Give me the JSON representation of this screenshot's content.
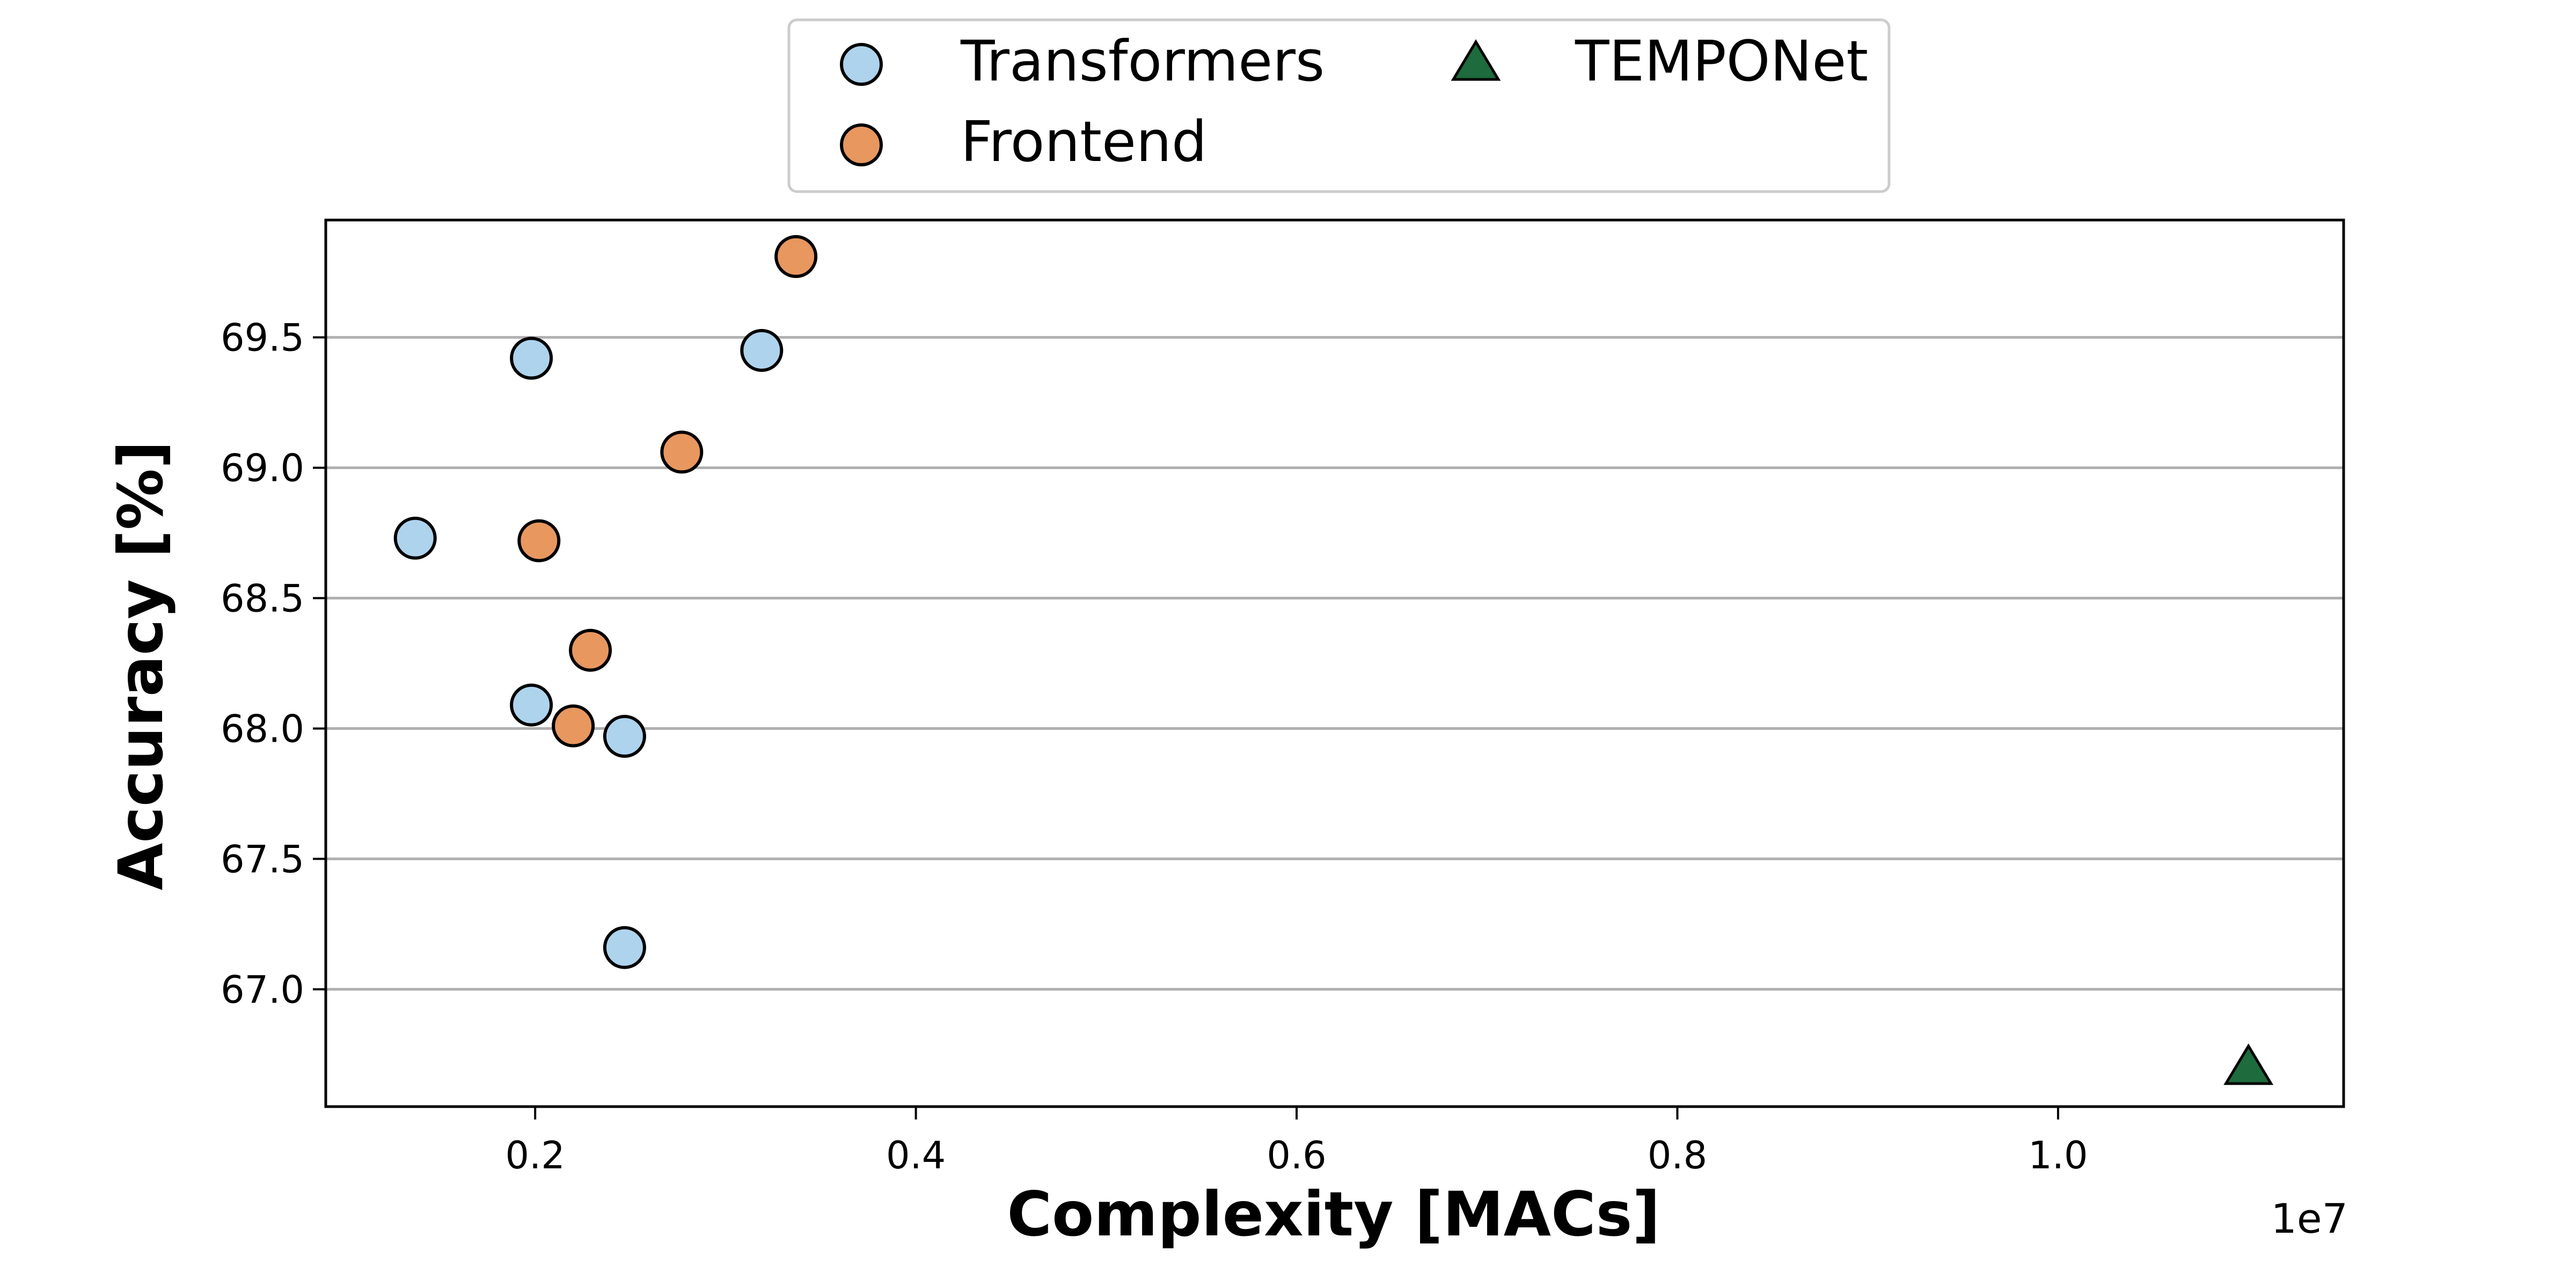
{
  "chart_data": {
    "type": "scatter",
    "title": "",
    "xlabel": "Complexity [MACs]",
    "ylabel": "Accuracy [%]",
    "x_offset_label": "1e7",
    "x_scale_factor": 10000000,
    "xlim": [
      900000,
      11500000
    ],
    "ylim": [
      66.55,
      69.95
    ],
    "x_ticks": [
      2000000,
      4000000,
      6000000,
      8000000,
      10000000
    ],
    "x_tick_labels": [
      "0.2",
      "0.4",
      "0.6",
      "0.8",
      "1.0"
    ],
    "y_ticks": [
      67.0,
      67.5,
      68.0,
      68.5,
      69.0,
      69.5
    ],
    "y_tick_labels": [
      "67.0",
      "67.5",
      "68.0",
      "68.5",
      "69.0",
      "69.5"
    ],
    "grid": "horizontal",
    "legend_placement": "top-center, outside plot",
    "series": [
      {
        "name": "Transformers",
        "marker": "circle",
        "color": "#aed3ed",
        "points": [
          {
            "x": 1370000,
            "y": 68.73
          },
          {
            "x": 1980000,
            "y": 69.42
          },
          {
            "x": 1980000,
            "y": 68.09
          },
          {
            "x": 2470000,
            "y": 67.97
          },
          {
            "x": 2470000,
            "y": 67.16
          },
          {
            "x": 3190000,
            "y": 69.45
          }
        ]
      },
      {
        "name": "Frontend",
        "marker": "circle",
        "color": "#e8975f",
        "points": [
          {
            "x": 2020000,
            "y": 68.72
          },
          {
            "x": 2200000,
            "y": 68.01
          },
          {
            "x": 2290000,
            "y": 68.3
          },
          {
            "x": 2770000,
            "y": 69.06
          },
          {
            "x": 3370000,
            "y": 69.81
          }
        ]
      },
      {
        "name": "TEMPONet",
        "marker": "triangle",
        "color": "#1e6b3d",
        "points": [
          {
            "x": 11000000,
            "y": 66.7
          }
        ]
      }
    ]
  }
}
